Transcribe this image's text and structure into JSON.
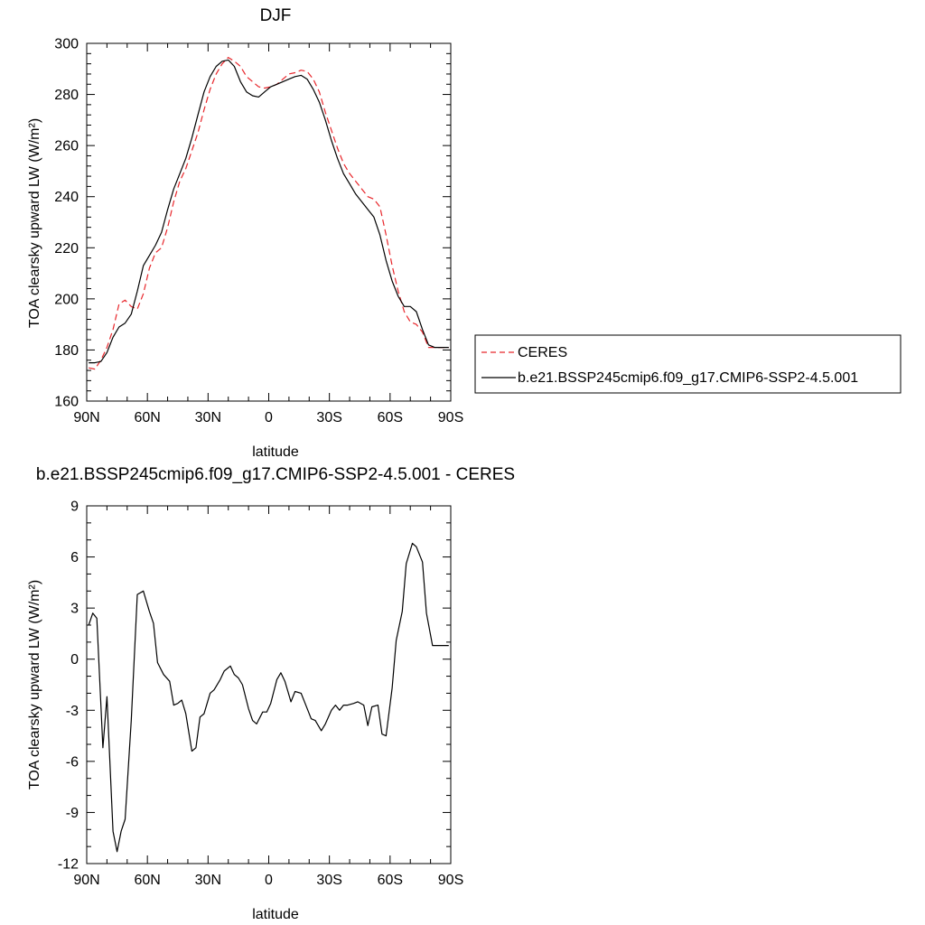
{
  "chart_data": [
    {
      "type": "line",
      "title": "DJF",
      "xlabel": "latitude",
      "ylabel": "TOA clearsky upward LW (W/m²)",
      "xlim": [
        -90,
        90
      ],
      "ylim": [
        160,
        300
      ],
      "xticks": [
        -90,
        -60,
        -30,
        0,
        30,
        60,
        90
      ],
      "xtick_labels": [
        "90N",
        "60N",
        "30N",
        "0",
        "30S",
        "60S",
        "90S"
      ],
      "yticks": [
        160,
        180,
        200,
        220,
        240,
        260,
        280,
        300
      ],
      "ytick_labels": [
        "160",
        "180",
        "200",
        "220",
        "240",
        "260",
        "280",
        "300"
      ],
      "legend_position": "right",
      "series": [
        {
          "name": "CERES",
          "color": "#e8262b",
          "dash": "dashed",
          "x": [
            -89,
            -86,
            -83,
            -80,
            -77,
            -74,
            -71,
            -68,
            -65,
            -62,
            -59,
            -56,
            -53,
            -50,
            -47,
            -44,
            -41,
            -38,
            -35,
            -32,
            -29,
            -26,
            -23,
            -20,
            -17,
            -14,
            -11,
            -8,
            -5,
            -2,
            1,
            4,
            7,
            10,
            13,
            16,
            19,
            22,
            25,
            28,
            31,
            34,
            37,
            40,
            43,
            46,
            49,
            52,
            55,
            58,
            61,
            64,
            67,
            70,
            73,
            76,
            79,
            82,
            85,
            88,
            89
          ],
          "y": [
            173,
            172.5,
            176,
            181,
            188,
            198,
            199.5,
            197,
            196,
            202,
            212,
            218,
            220,
            228,
            238,
            246,
            251,
            258,
            265,
            274,
            282,
            288,
            292,
            294.5,
            293,
            291,
            287,
            285,
            283,
            282.5,
            283,
            284,
            286,
            288,
            288.5,
            289.5,
            289,
            286,
            281,
            273,
            266,
            259,
            253,
            249,
            246,
            243,
            240,
            239,
            236,
            225,
            213,
            203,
            195,
            191,
            190,
            187,
            181,
            181,
            181,
            181,
            181
          ]
        },
        {
          "name": "b.e21.BSSP245cmip6.f09_g17.CMIP6-SSP2-4.5.001",
          "color": "#000000",
          "dash": "solid",
          "x": [
            -89,
            -86,
            -83,
            -80,
            -77,
            -74,
            -71,
            -68,
            -65,
            -62,
            -59,
            -56,
            -53,
            -50,
            -47,
            -44,
            -41,
            -38,
            -35,
            -32,
            -29,
            -26,
            -23,
            -20,
            -17,
            -14,
            -11,
            -8,
            -5,
            -2,
            1,
            4,
            7,
            10,
            13,
            16,
            19,
            22,
            25,
            28,
            31,
            34,
            37,
            40,
            43,
            46,
            49,
            52,
            55,
            58,
            61,
            64,
            67,
            70,
            73,
            76,
            79,
            82,
            85,
            88,
            89
          ],
          "y": [
            175,
            175,
            175.5,
            179,
            185,
            189,
            190.5,
            194,
            203,
            213,
            217,
            221,
            226,
            235,
            243,
            249,
            255,
            263,
            272,
            281,
            287,
            291,
            293,
            293.5,
            291,
            285,
            281,
            279.5,
            279,
            281,
            283,
            284,
            285,
            286,
            287,
            287.5,
            286,
            282,
            277,
            270,
            262,
            255,
            249,
            245,
            241,
            238,
            235,
            232,
            225,
            215,
            207,
            201,
            197,
            197,
            195,
            188,
            182,
            181,
            181,
            181,
            181
          ]
        }
      ]
    },
    {
      "type": "line",
      "title": "b.e21.BSSP245cmip6.f09_g17.CMIP6-SSP2-4.5.001 - CERES",
      "xlabel": "latitude",
      "ylabel": "TOA clearsky upward LW (W/m²)",
      "xlim": [
        -90,
        90
      ],
      "ylim": [
        -12,
        9
      ],
      "xticks": [
        -90,
        -60,
        -30,
        0,
        30,
        60,
        90
      ],
      "xtick_labels": [
        "90N",
        "60N",
        "30N",
        "0",
        "30S",
        "60S",
        "90S"
      ],
      "yticks": [
        -12,
        -9,
        -6,
        -3,
        0,
        3,
        6,
        9
      ],
      "ytick_labels": [
        "-12",
        "-9",
        "-6",
        "-3",
        "0",
        "3",
        "6",
        "9"
      ],
      "series": [
        {
          "color": "#000000",
          "dash": "solid",
          "x": [
            -89,
            -87,
            -85,
            -82,
            -80,
            -77,
            -75,
            -73,
            -71,
            -68,
            -65,
            -62,
            -59,
            -57,
            -55,
            -52,
            -49,
            -47,
            -45,
            -43,
            -41,
            -38,
            -36,
            -34,
            -32,
            -29,
            -27,
            -24,
            -22,
            -19,
            -17,
            -15,
            -13,
            -10,
            -8,
            -6,
            -3,
            -1,
            1,
            4,
            6,
            8,
            11,
            13,
            16,
            18,
            21,
            23,
            26,
            28,
            31,
            33,
            35,
            37,
            39,
            42,
            44,
            47,
            49,
            51,
            54,
            56,
            58,
            61,
            63,
            66,
            68,
            71,
            73,
            76,
            78,
            81,
            83,
            85,
            87,
            89
          ],
          "y": [
            2.0,
            2.7,
            2.4,
            -5.2,
            -2.2,
            -10.1,
            -11.3,
            -10.1,
            -9.4,
            -3.6,
            3.8,
            4.0,
            2.8,
            2.1,
            -0.2,
            -0.9,
            -1.3,
            -2.7,
            -2.6,
            -2.4,
            -3.2,
            -5.4,
            -5.2,
            -3.4,
            -3.2,
            -2.0,
            -1.8,
            -1.2,
            -0.7,
            -0.4,
            -0.9,
            -1.1,
            -1.5,
            -2.9,
            -3.6,
            -3.8,
            -3.1,
            -3.1,
            -2.6,
            -1.2,
            -0.8,
            -1.3,
            -2.5,
            -1.9,
            -2.0,
            -2.6,
            -3.5,
            -3.6,
            -4.2,
            -3.8,
            -3.0,
            -2.7,
            -3.0,
            -2.7,
            -2.7,
            -2.6,
            -2.5,
            -2.7,
            -3.9,
            -2.8,
            -2.7,
            -4.4,
            -4.5,
            -1.7,
            1.1,
            2.8,
            5.6,
            6.8,
            6.6,
            5.7,
            2.7,
            0.8,
            0.8,
            0.8,
            0.8,
            0.8
          ]
        }
      ]
    }
  ]
}
